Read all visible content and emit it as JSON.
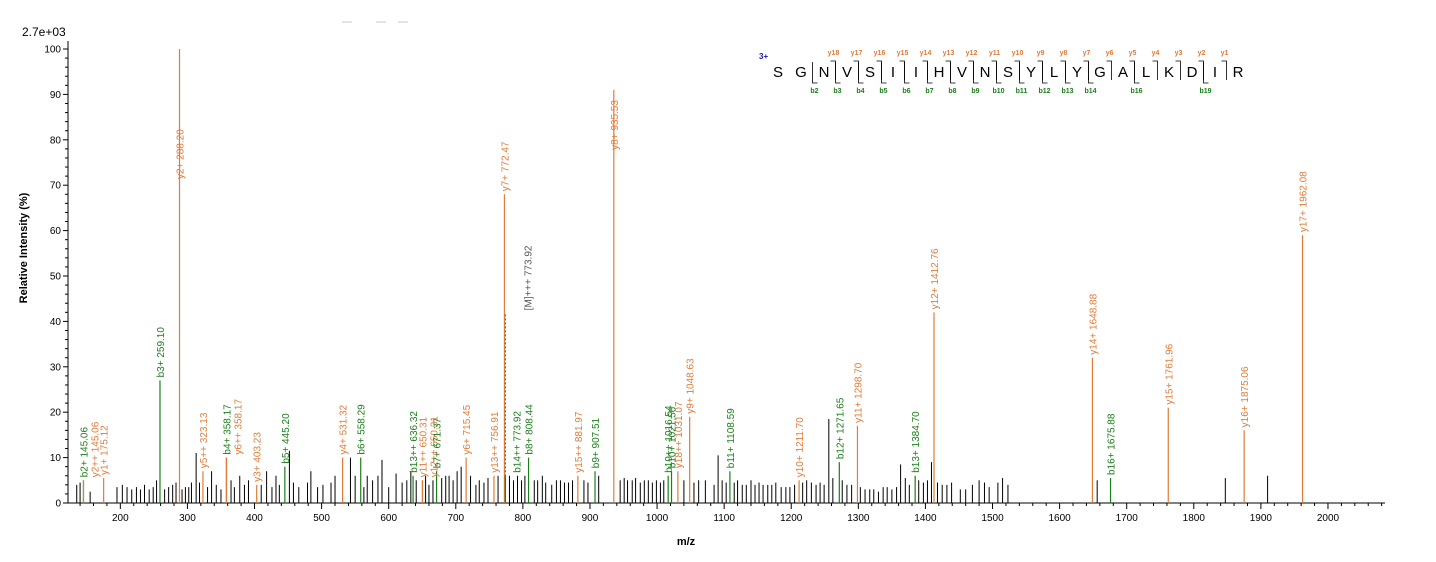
{
  "colors": {
    "y_ion": "#e07b39",
    "b_ion": "#1a7f1a",
    "unassigned": "#000000",
    "precursor": "#555555",
    "charge": "#1a1aa6"
  },
  "chart_data": {
    "type": "bar",
    "scale_label": "2.7e+03",
    "xlabel": "m/z",
    "ylabel": "Relative   Intensity (%)",
    "xlim": [
      122,
      2085
    ],
    "ylim": [
      0,
      100
    ],
    "x_ticks": [
      200,
      300,
      400,
      500,
      600,
      700,
      800,
      900,
      1000,
      1100,
      1200,
      1300,
      1400,
      1500,
      1600,
      1700,
      1800,
      1900,
      2000
    ],
    "y_ticks": [
      0,
      10,
      20,
      30,
      40,
      50,
      60,
      70,
      80,
      90,
      100
    ],
    "annotated_peaks": [
      {
        "mz": 145.06,
        "intensity": 5,
        "type": "b",
        "label": "b2+ 145.06"
      },
      {
        "mz": 145.06,
        "intensity": 5,
        "type": "y",
        "label": "y2++ 145.06"
      },
      {
        "mz": 175.12,
        "intensity": 5.5,
        "type": "y",
        "label": "y1+ 175.12"
      },
      {
        "mz": 259.1,
        "intensity": 27,
        "type": "b",
        "label": "b3+ 259.10"
      },
      {
        "mz": 288.2,
        "intensity": 100,
        "type": "y",
        "label": "y2+ 288.20"
      },
      {
        "mz": 323.13,
        "intensity": 7,
        "type": "y",
        "label": "y5++ 323.13"
      },
      {
        "mz": 358.17,
        "intensity": 10,
        "type": "b",
        "label": "b4+ 358.17"
      },
      {
        "mz": 358.17,
        "intensity": 10,
        "type": "y",
        "label": "y6++ 358.17"
      },
      {
        "mz": 403.23,
        "intensity": 4,
        "type": "y",
        "label": "y3+ 403.23"
      },
      {
        "mz": 445.2,
        "intensity": 8,
        "type": "b",
        "label": "b5+ 445.20"
      },
      {
        "mz": 531.32,
        "intensity": 10,
        "type": "y",
        "label": "y4+ 531.32"
      },
      {
        "mz": 558.29,
        "intensity": 10,
        "type": "b",
        "label": "b6+ 558.29"
      },
      {
        "mz": 636.32,
        "intensity": 6,
        "type": "b",
        "label": "b13++ 636.32"
      },
      {
        "mz": 650.31,
        "intensity": 5,
        "type": "y",
        "label": "y11++ 650.31"
      },
      {
        "mz": 650.31,
        "intensity": 5,
        "type": "y",
        "label": "y12++ 650.31"
      },
      {
        "mz": 671.37,
        "intensity": 7,
        "type": "b",
        "label": "b7+ 671.37"
      },
      {
        "mz": 715.45,
        "intensity": 10,
        "type": "y",
        "label": "y6+ 715.45"
      },
      {
        "mz": 756.91,
        "intensity": 6,
        "type": "y",
        "label": "y13++ 756.91"
      },
      {
        "mz": 772.47,
        "intensity": 68,
        "type": "y",
        "label": "y7+ 772.47"
      },
      {
        "mz": 773.92,
        "intensity": 6,
        "type": "b",
        "label": "b14++ 773.92"
      },
      {
        "mz": 773.92,
        "intensity": 42,
        "type": "precursor",
        "label": "[M]+++ 773.92"
      },
      {
        "mz": 808.44,
        "intensity": 10,
        "type": "b",
        "label": "b8+ 808.44"
      },
      {
        "mz": 881.97,
        "intensity": 6,
        "type": "y",
        "label": "y15++ 881.97"
      },
      {
        "mz": 907.51,
        "intensity": 7,
        "type": "b",
        "label": "b9+ 907.51"
      },
      {
        "mz": 935.53,
        "intensity": 91,
        "type": "y",
        "label": "y8+ 935.53"
      },
      {
        "mz": 1016.54,
        "intensity": 6,
        "type": "b",
        "label": "b19++ 1016.54"
      },
      {
        "mz": 1021.56,
        "intensity": 7,
        "type": "b",
        "label": "b10+ 1021.56"
      },
      {
        "mz": 1031.07,
        "intensity": 7,
        "type": "y",
        "label": "y18++ 1031.07"
      },
      {
        "mz": 1048.63,
        "intensity": 19,
        "type": "y",
        "label": "y9+ 1048.63"
      },
      {
        "mz": 1108.59,
        "intensity": 7,
        "type": "b",
        "label": "b11+ 1108.59"
      },
      {
        "mz": 1211.7,
        "intensity": 5,
        "type": "y",
        "label": "y10+ 1211.70"
      },
      {
        "mz": 1271.65,
        "intensity": 9,
        "type": "b",
        "label": "b12+ 1271.65"
      },
      {
        "mz": 1298.7,
        "intensity": 17,
        "type": "y",
        "label": "y11+ 1298.70"
      },
      {
        "mz": 1384.7,
        "intensity": 6,
        "type": "b",
        "label": "b13+ 1384.70"
      },
      {
        "mz": 1412.76,
        "intensity": 42,
        "type": "y",
        "label": "y12+ 1412.76"
      },
      {
        "mz": 1648.88,
        "intensity": 32,
        "type": "y",
        "label": "y14+ 1648.88"
      },
      {
        "mz": 1675.88,
        "intensity": 5.5,
        "type": "b",
        "label": "b16+ 1675.88"
      },
      {
        "mz": 1761.96,
        "intensity": 21,
        "type": "y",
        "label": "y15+ 1761.96"
      },
      {
        "mz": 1875.06,
        "intensity": 16,
        "type": "y",
        "label": "y16+ 1875.06"
      },
      {
        "mz": 1962.08,
        "intensity": 59,
        "type": "y",
        "label": "y17+ 1962.08"
      }
    ],
    "unassigned_peaks": [
      [
        135,
        4
      ],
      [
        140,
        4.5
      ],
      [
        155,
        2.5
      ],
      [
        195,
        3.5
      ],
      [
        203,
        4
      ],
      [
        210,
        3.5
      ],
      [
        217,
        3
      ],
      [
        224,
        3.5
      ],
      [
        230,
        3
      ],
      [
        236,
        4
      ],
      [
        243,
        3
      ],
      [
        249,
        3.5
      ],
      [
        254,
        5
      ],
      [
        266,
        3
      ],
      [
        272,
        3.5
      ],
      [
        278,
        4
      ],
      [
        283,
        4.5
      ],
      [
        292,
        3
      ],
      [
        297,
        3.5
      ],
      [
        302,
        3.5
      ],
      [
        306,
        4.5
      ],
      [
        313,
        11
      ],
      [
        318,
        4.5
      ],
      [
        330,
        3.5
      ],
      [
        336,
        7
      ],
      [
        343,
        4
      ],
      [
        350,
        3
      ],
      [
        365,
        5
      ],
      [
        370,
        3.5
      ],
      [
        378,
        6
      ],
      [
        385,
        4
      ],
      [
        391,
        5
      ],
      [
        410,
        4
      ],
      [
        418,
        7
      ],
      [
        426,
        3.5
      ],
      [
        432,
        6
      ],
      [
        437,
        4
      ],
      [
        452,
        11.5
      ],
      [
        458,
        4.5
      ],
      [
        466,
        3.5
      ],
      [
        479,
        4.5
      ],
      [
        484,
        7
      ],
      [
        494,
        3.5
      ],
      [
        502,
        4
      ],
      [
        514,
        4.5
      ],
      [
        520,
        6
      ],
      [
        543,
        10
      ],
      [
        550,
        6
      ],
      [
        563,
        3.5
      ],
      [
        568,
        6
      ],
      [
        576,
        5
      ],
      [
        584,
        6
      ],
      [
        590,
        9.5
      ],
      [
        600,
        3.5
      ],
      [
        611,
        6.5
      ],
      [
        620,
        4.5
      ],
      [
        627,
        5
      ],
      [
        633,
        7
      ],
      [
        641,
        5
      ],
      [
        655,
        6
      ],
      [
        660,
        4
      ],
      [
        666,
        5
      ],
      [
        679,
        5.5
      ],
      [
        685,
        6
      ],
      [
        690,
        6
      ],
      [
        696,
        5
      ],
      [
        702,
        7
      ],
      [
        708,
        8
      ],
      [
        722,
        6
      ],
      [
        730,
        4
      ],
      [
        735,
        5
      ],
      [
        742,
        4.5
      ],
      [
        748,
        5.5
      ],
      [
        763,
        6
      ],
      [
        780,
        6
      ],
      [
        786,
        5
      ],
      [
        792,
        6
      ],
      [
        798,
        5
      ],
      [
        803,
        6
      ],
      [
        817,
        5
      ],
      [
        822,
        5
      ],
      [
        829,
        6
      ],
      [
        834,
        4.5
      ],
      [
        843,
        4
      ],
      [
        850,
        5
      ],
      [
        856,
        5
      ],
      [
        862,
        4.5
      ],
      [
        868,
        4.5
      ],
      [
        874,
        5
      ],
      [
        891,
        5
      ],
      [
        897,
        4.5
      ],
      [
        913,
        6
      ],
      [
        945,
        5
      ],
      [
        951,
        5.5
      ],
      [
        956,
        5
      ],
      [
        963,
        5
      ],
      [
        968,
        5.5
      ],
      [
        975,
        4.5
      ],
      [
        981,
        5
      ],
      [
        987,
        5
      ],
      [
        993,
        4.5
      ],
      [
        999,
        5
      ],
      [
        1005,
        4.5
      ],
      [
        1010,
        5
      ],
      [
        1040,
        5
      ],
      [
        1055,
        4.5
      ],
      [
        1062,
        5
      ],
      [
        1072,
        5
      ],
      [
        1085,
        4
      ],
      [
        1091,
        10.5
      ],
      [
        1097,
        5
      ],
      [
        1103,
        4.5
      ],
      [
        1115,
        4.5
      ],
      [
        1120,
        5
      ],
      [
        1127,
        4
      ],
      [
        1133,
        4
      ],
      [
        1140,
        5
      ],
      [
        1146,
        4
      ],
      [
        1152,
        4.5
      ],
      [
        1158,
        4
      ],
      [
        1165,
        4
      ],
      [
        1171,
        4
      ],
      [
        1177,
        4.5
      ],
      [
        1185,
        3.5
      ],
      [
        1192,
        3.5
      ],
      [
        1198,
        3.5
      ],
      [
        1205,
        4
      ],
      [
        1217,
        4.5
      ],
      [
        1223,
        5
      ],
      [
        1230,
        4.5
      ],
      [
        1237,
        4
      ],
      [
        1243,
        4.5
      ],
      [
        1249,
        4
      ],
      [
        1256,
        18.5
      ],
      [
        1262,
        5.5
      ],
      [
        1276,
        5
      ],
      [
        1283,
        4
      ],
      [
        1290,
        4
      ],
      [
        1303,
        3.5
      ],
      [
        1310,
        3
      ],
      [
        1317,
        3
      ],
      [
        1323,
        3
      ],
      [
        1330,
        2.5
      ],
      [
        1337,
        3.5
      ],
      [
        1343,
        3.5
      ],
      [
        1350,
        3
      ],
      [
        1357,
        3.5
      ],
      [
        1363,
        8.5
      ],
      [
        1370,
        5.5
      ],
      [
        1376,
        4
      ],
      [
        1390,
        5
      ],
      [
        1397,
        4.5
      ],
      [
        1403,
        5
      ],
      [
        1409,
        9
      ],
      [
        1418,
        4.5
      ],
      [
        1425,
        4
      ],
      [
        1432,
        4
      ],
      [
        1439,
        4.5
      ],
      [
        1452,
        3
      ],
      [
        1460,
        3
      ],
      [
        1470,
        4
      ],
      [
        1480,
        5
      ],
      [
        1488,
        4.5
      ],
      [
        1495,
        3.5
      ],
      [
        1508,
        4.5
      ],
      [
        1515,
        5.5
      ],
      [
        1523,
        4
      ],
      [
        1656,
        5
      ],
      [
        1847,
        5.5
      ],
      [
        1910,
        6
      ]
    ],
    "sequence": {
      "charge": "3+",
      "residues": [
        "S",
        "G",
        "N",
        "V",
        "S",
        "I",
        "I",
        "H",
        "V",
        "N",
        "S",
        "Y",
        "L",
        "Y",
        "G",
        "A",
        "L",
        "K",
        "D",
        "I",
        "R"
      ],
      "y_labels": [
        "y18",
        "y17",
        "y16",
        "y15",
        "y14",
        "y13",
        "y12",
        "y11",
        "y10",
        "y9",
        "y8",
        "y7",
        "y6",
        "y5",
        "y4",
        "y3",
        "y2",
        "y1"
      ],
      "b_labels": [
        "b2",
        "b3",
        "b4",
        "b5",
        "b6",
        "b7",
        "b8",
        "b9",
        "b10",
        "b11",
        "b12",
        "b13",
        "b14",
        "b16",
        "b19"
      ]
    }
  }
}
